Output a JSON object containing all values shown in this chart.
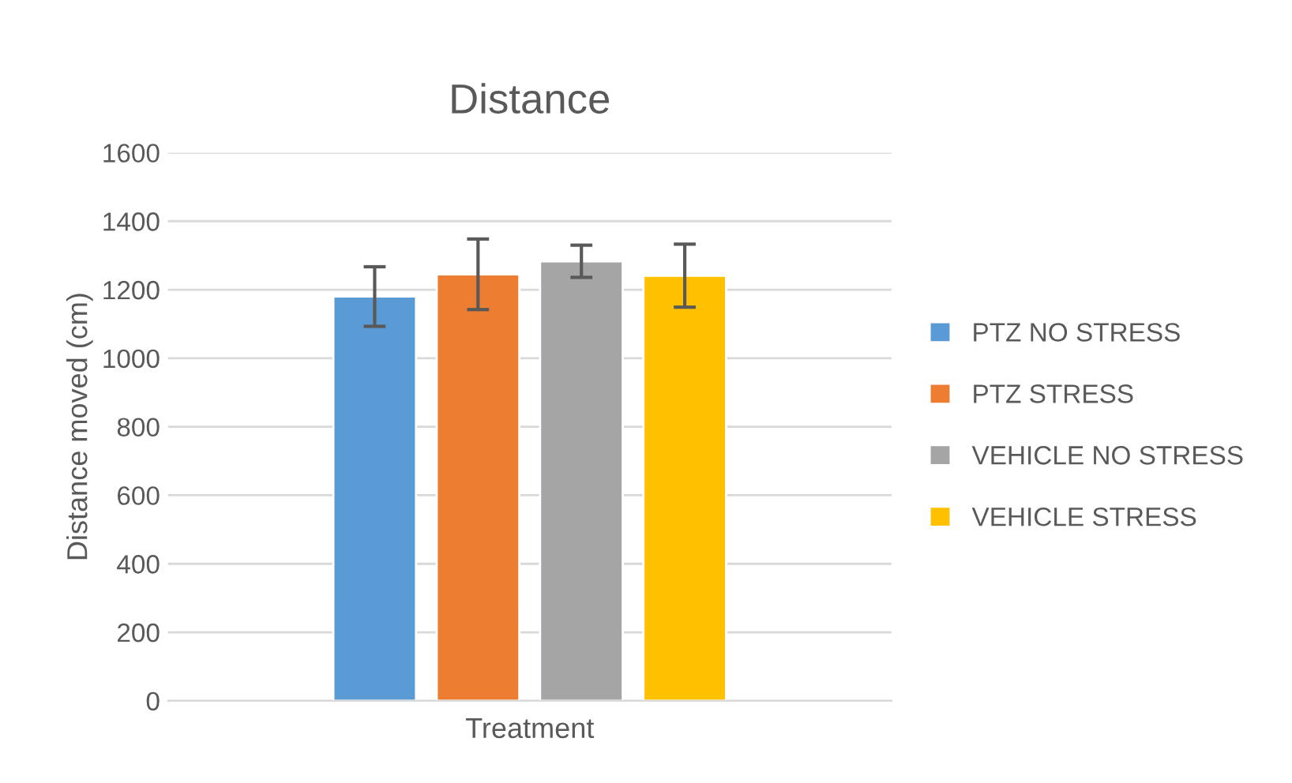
{
  "chart_data": {
    "type": "bar",
    "title": "Distance",
    "xlabel": "Treatment",
    "ylabel": "Distance moved (cm)",
    "categories": [
      null
    ],
    "series": [
      {
        "name": "PTZ NO STRESS",
        "color": "#5b9bd5",
        "values": [
          1180
        ],
        "errors": [
          87
        ]
      },
      {
        "name": "PTZ STRESS",
        "color": "#ed7d31",
        "values": [
          1245
        ],
        "errors": [
          103
        ]
      },
      {
        "name": "VEHICLE NO STRESS",
        "color": "#a5a5a5",
        "values": [
          1283
        ],
        "errors": [
          47
        ]
      },
      {
        "name": "VEHICLE STRESS",
        "color": "#ffc000",
        "values": [
          1241
        ],
        "errors": [
          92
        ]
      }
    ],
    "ylim": [
      0,
      1600
    ],
    "yticks": [
      0,
      200,
      400,
      600,
      800,
      1000,
      1200,
      1400,
      1600
    ],
    "grid": "y",
    "legend": "right"
  }
}
